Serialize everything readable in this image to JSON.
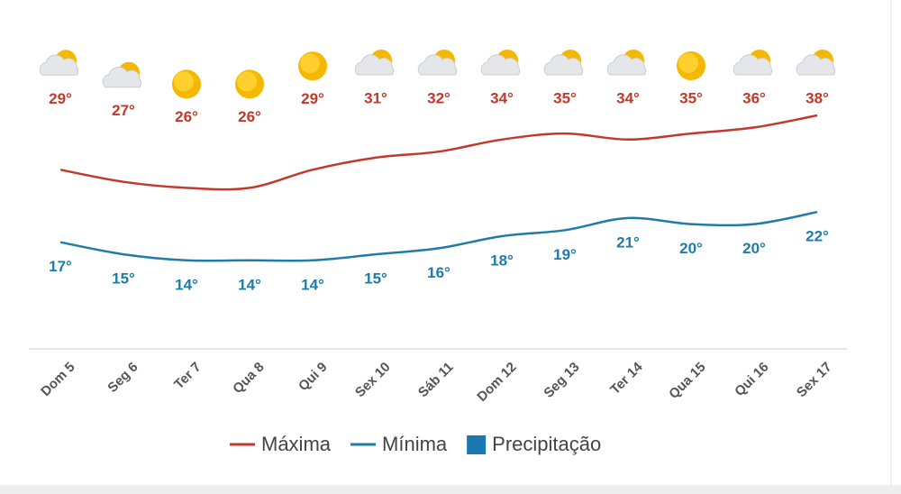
{
  "chart_data": {
    "type": "line",
    "categories": [
      "Dom 5",
      "Seg 6",
      "Ter 7",
      "Qua 8",
      "Qui 9",
      "Sex 10",
      "Sáb 11",
      "Dom 12",
      "Seg 13",
      "Ter 14",
      "Qua 15",
      "Qui 16",
      "Sex 17"
    ],
    "series": [
      {
        "name": "Máxima",
        "color": "#c0392b",
        "values": [
          29,
          27,
          26,
          26,
          29,
          31,
          32,
          34,
          35,
          34,
          35,
          36,
          38
        ],
        "value_labels": [
          "29°",
          "27°",
          "26°",
          "26°",
          "29°",
          "31°",
          "32°",
          "34°",
          "35°",
          "34°",
          "35°",
          "36°",
          "38°"
        ]
      },
      {
        "name": "Mínima",
        "color": "#1f7ca6",
        "values": [
          17,
          15,
          14,
          14,
          14,
          15,
          16,
          18,
          19,
          21,
          20,
          20,
          22
        ],
        "value_labels": [
          "17°",
          "15°",
          "14°",
          "14°",
          "14°",
          "15°",
          "16°",
          "18°",
          "19°",
          "21°",
          "20°",
          "20°",
          "22°"
        ]
      },
      {
        "name": "Precipitação",
        "color": "#1a7ab0",
        "type": "bar",
        "values": [
          null,
          null,
          null,
          null,
          null,
          null,
          null,
          null,
          null,
          null,
          null,
          null,
          null
        ]
      }
    ]
  }
}
